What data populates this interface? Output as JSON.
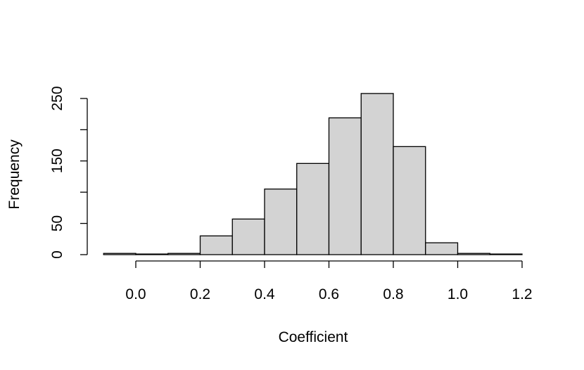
{
  "chart_data": {
    "type": "bar",
    "title": "",
    "xlabel": "Coefficient",
    "ylabel": "Frequency",
    "bins": [
      {
        "x0": -0.1,
        "x1": 0.0,
        "count": 2
      },
      {
        "x0": 0.0,
        "x1": 0.1,
        "count": 1
      },
      {
        "x0": 0.1,
        "x1": 0.2,
        "count": 2
      },
      {
        "x0": 0.2,
        "x1": 0.3,
        "count": 30
      },
      {
        "x0": 0.3,
        "x1": 0.4,
        "count": 57
      },
      {
        "x0": 0.4,
        "x1": 0.5,
        "count": 105
      },
      {
        "x0": 0.5,
        "x1": 0.6,
        "count": 146
      },
      {
        "x0": 0.6,
        "x1": 0.7,
        "count": 219
      },
      {
        "x0": 0.7,
        "x1": 0.8,
        "count": 258
      },
      {
        "x0": 0.8,
        "x1": 0.9,
        "count": 173
      },
      {
        "x0": 0.9,
        "x1": 1.0,
        "count": 19
      },
      {
        "x0": 1.0,
        "x1": 1.1,
        "count": 2
      },
      {
        "x0": 1.1,
        "x1": 1.2,
        "count": 1
      }
    ],
    "xticks": [
      "0.0",
      "0.2",
      "0.4",
      "0.6",
      "0.8",
      "1.0",
      "1.2"
    ],
    "yticks": [
      "0",
      "50",
      "150",
      "250"
    ],
    "yticks_unlabeled": [
      100,
      200
    ],
    "xlim": [
      -0.1,
      1.2
    ],
    "ylim": [
      0,
      258
    ],
    "grid": false,
    "legend": "none",
    "bar_color": "#d3d3d3",
    "edge_color": "#000000"
  }
}
